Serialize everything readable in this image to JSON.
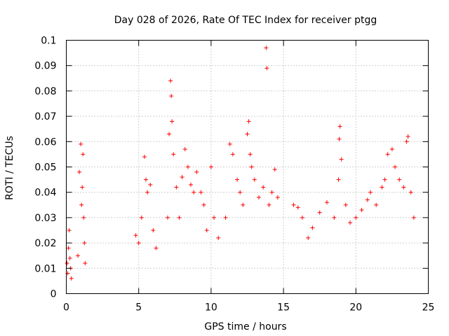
{
  "chart_data": {
    "type": "scatter",
    "title": "Day 028 of 2026, Rate Of TEC Index for receiver ptgg",
    "xlabel": "GPS time / hours",
    "ylabel": "ROTI / TECUs",
    "xlim": [
      0,
      25
    ],
    "ylim": [
      0,
      0.1
    ],
    "xticks": [
      "0",
      "5",
      "10",
      "15",
      "20",
      "25"
    ],
    "yticks": [
      "0",
      "0.01",
      "0.02",
      "0.03",
      "0.04",
      "0.05",
      "0.06",
      "0.07",
      "0.08",
      "0.09",
      "0.1"
    ],
    "grid": true,
    "marker": "+",
    "color": "#ff0000",
    "series": [
      {
        "values": [
          [
            0.05,
            0.012
          ],
          [
            0.1,
            0.008
          ],
          [
            0.15,
            0.018
          ],
          [
            0.2,
            0.025
          ],
          [
            0.25,
            0.014
          ],
          [
            0.3,
            0.01
          ],
          [
            0.35,
            0.006
          ],
          [
            0.8,
            0.015
          ],
          [
            0.9,
            0.048
          ],
          [
            1.0,
            0.059
          ],
          [
            1.05,
            0.035
          ],
          [
            1.1,
            0.042
          ],
          [
            1.15,
            0.055
          ],
          [
            1.2,
            0.03
          ],
          [
            1.25,
            0.02
          ],
          [
            1.3,
            0.012
          ],
          [
            4.8,
            0.023
          ],
          [
            5.0,
            0.02
          ],
          [
            5.2,
            0.03
          ],
          [
            5.4,
            0.054
          ],
          [
            5.5,
            0.045
          ],
          [
            5.6,
            0.04
          ],
          [
            5.8,
            0.043
          ],
          [
            6.0,
            0.025
          ],
          [
            6.2,
            0.018
          ],
          [
            7.0,
            0.03
          ],
          [
            7.1,
            0.063
          ],
          [
            7.2,
            0.084
          ],
          [
            7.25,
            0.078
          ],
          [
            7.3,
            0.068
          ],
          [
            7.4,
            0.055
          ],
          [
            7.6,
            0.042
          ],
          [
            7.8,
            0.03
          ],
          [
            8.0,
            0.046
          ],
          [
            8.2,
            0.057
          ],
          [
            8.4,
            0.05
          ],
          [
            8.6,
            0.043
          ],
          [
            8.8,
            0.04
          ],
          [
            9.0,
            0.048
          ],
          [
            9.3,
            0.04
          ],
          [
            9.5,
            0.035
          ],
          [
            9.7,
            0.025
          ],
          [
            10.0,
            0.05
          ],
          [
            10.2,
            0.03
          ],
          [
            10.5,
            0.022
          ],
          [
            11.0,
            0.03
          ],
          [
            11.3,
            0.059
          ],
          [
            11.5,
            0.055
          ],
          [
            11.8,
            0.045
          ],
          [
            12.0,
            0.04
          ],
          [
            12.2,
            0.035
          ],
          [
            12.5,
            0.063
          ],
          [
            12.6,
            0.068
          ],
          [
            12.7,
            0.055
          ],
          [
            12.8,
            0.05
          ],
          [
            13.0,
            0.045
          ],
          [
            13.3,
            0.038
          ],
          [
            13.6,
            0.042
          ],
          [
            13.8,
            0.097
          ],
          [
            13.85,
            0.089
          ],
          [
            14.0,
            0.035
          ],
          [
            14.2,
            0.04
          ],
          [
            14.4,
            0.049
          ],
          [
            14.6,
            0.038
          ],
          [
            15.7,
            0.035
          ],
          [
            16.0,
            0.034
          ],
          [
            16.3,
            0.03
          ],
          [
            16.7,
            0.022
          ],
          [
            17.0,
            0.026
          ],
          [
            17.5,
            0.032
          ],
          [
            18.0,
            0.036
          ],
          [
            18.5,
            0.03
          ],
          [
            18.8,
            0.045
          ],
          [
            18.85,
            0.061
          ],
          [
            18.9,
            0.066
          ],
          [
            19.0,
            0.053
          ],
          [
            19.3,
            0.035
          ],
          [
            19.6,
            0.028
          ],
          [
            20.0,
            0.03
          ],
          [
            20.4,
            0.033
          ],
          [
            20.8,
            0.037
          ],
          [
            21.0,
            0.04
          ],
          [
            21.4,
            0.035
          ],
          [
            21.8,
            0.042
          ],
          [
            22.0,
            0.045
          ],
          [
            22.2,
            0.055
          ],
          [
            22.5,
            0.057
          ],
          [
            22.7,
            0.05
          ],
          [
            23.0,
            0.045
          ],
          [
            23.3,
            0.042
          ],
          [
            23.5,
            0.06
          ],
          [
            23.6,
            0.062
          ],
          [
            23.8,
            0.04
          ],
          [
            24.0,
            0.03
          ]
        ]
      }
    ]
  }
}
